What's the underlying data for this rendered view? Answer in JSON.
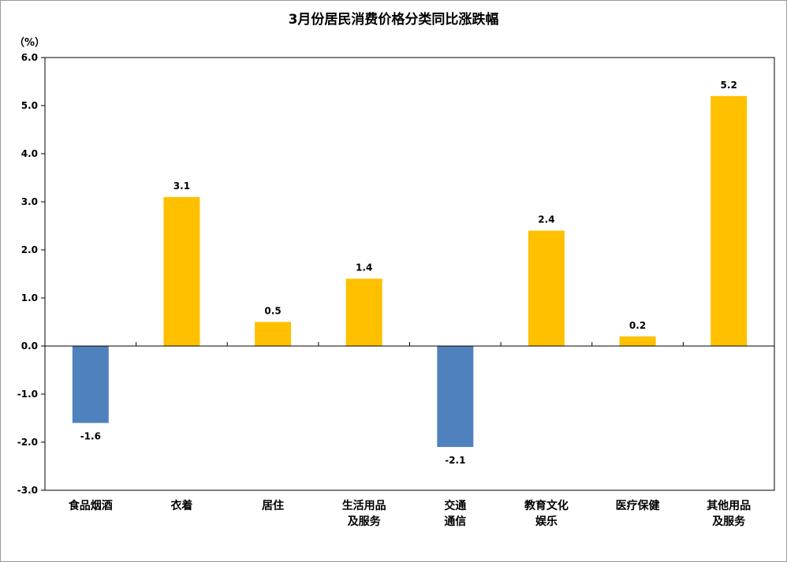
{
  "chart_data": {
    "type": "bar",
    "title": "3月份居民消费价格分类同比涨跌幅",
    "unit_label": "（%）",
    "categories": [
      [
        "食品烟酒"
      ],
      [
        "衣着"
      ],
      [
        "居住"
      ],
      [
        "生活用品",
        "及服务"
      ],
      [
        "交通",
        "通信"
      ],
      [
        "教育文化",
        "娱乐"
      ],
      [
        "医疗保健"
      ],
      [
        "其他用品",
        "及服务"
      ]
    ],
    "values": [
      -1.6,
      3.1,
      0.5,
      1.4,
      -2.1,
      2.4,
      0.2,
      5.2
    ],
    "data_labels": [
      "-1.6",
      "3.1",
      "0.5",
      "1.4",
      "-2.1",
      "2.4",
      "0.2",
      "5.2"
    ],
    "ylim": [
      -3.0,
      6.0
    ],
    "yticks": [
      "6.0",
      "5.0",
      "4.0",
      "3.0",
      "2.0",
      "1.0",
      "0.0",
      "-1.0",
      "-2.0",
      "-3.0"
    ],
    "ytick_values": [
      6,
      5,
      4,
      3,
      2,
      1,
      0,
      -1,
      -2,
      -3
    ],
    "colors": {
      "positive": "#FFC000",
      "negative": "#4F81BD"
    },
    "grid": false,
    "legend": "none"
  }
}
